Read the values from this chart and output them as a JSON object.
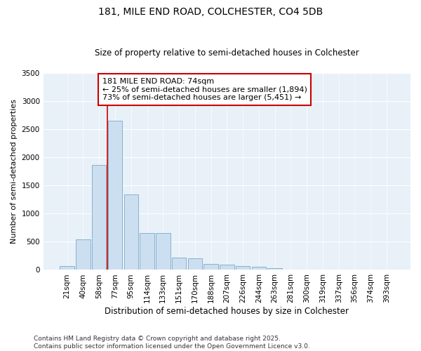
{
  "title_line1": "181, MILE END ROAD, COLCHESTER, CO4 5DB",
  "title_line2": "Size of property relative to semi-detached houses in Colchester",
  "xlabel": "Distribution of semi-detached houses by size in Colchester",
  "ylabel": "Number of semi-detached properties",
  "categories": [
    "21sqm",
    "40sqm",
    "58sqm",
    "77sqm",
    "95sqm",
    "114sqm",
    "133sqm",
    "151sqm",
    "170sqm",
    "188sqm",
    "207sqm",
    "226sqm",
    "244sqm",
    "263sqm",
    "281sqm",
    "300sqm",
    "319sqm",
    "337sqm",
    "356sqm",
    "374sqm",
    "393sqm"
  ],
  "values": [
    70,
    540,
    1860,
    2650,
    1340,
    650,
    650,
    220,
    210,
    110,
    90,
    65,
    50,
    25,
    8,
    4,
    3,
    2,
    1,
    1,
    1
  ],
  "bar_color": "#ccdff0",
  "bar_edge_color": "#7aaac8",
  "vline_x_index": 3,
  "vline_color": "#cc0000",
  "annotation_text": "181 MILE END ROAD: 74sqm\n← 25% of semi-detached houses are smaller (1,894)\n73% of semi-detached houses are larger (5,451) →",
  "annotation_box_color": "white",
  "annotation_box_edge": "#cc0000",
  "ylim": [
    0,
    3500
  ],
  "yticks": [
    0,
    500,
    1000,
    1500,
    2000,
    2500,
    3000,
    3500
  ],
  "background_color": "#e8f0f8",
  "footer": "Contains HM Land Registry data © Crown copyright and database right 2025.\nContains public sector information licensed under the Open Government Licence v3.0.",
  "title_fontsize": 10,
  "subtitle_fontsize": 8.5,
  "xlabel_fontsize": 8.5,
  "ylabel_fontsize": 8,
  "tick_fontsize": 7.5,
  "annotation_fontsize": 8,
  "footer_fontsize": 6.5
}
